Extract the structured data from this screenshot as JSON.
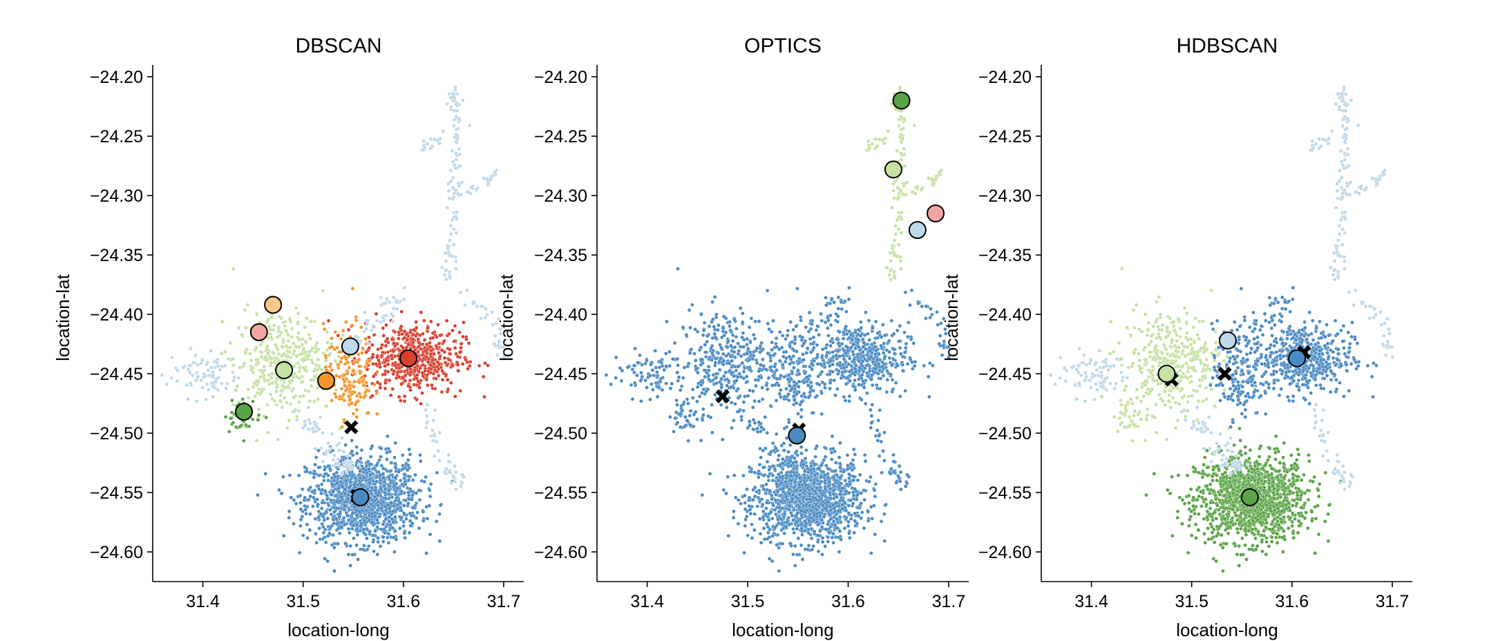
{
  "figure": {
    "panels": [
      {
        "title": "DBSCAN"
      },
      {
        "title": "OPTICS"
      },
      {
        "title": "HDBSCAN"
      }
    ],
    "xlabel": "location-long",
    "ylabel": "location-lat"
  },
  "chart_data": [
    {
      "type": "scatter",
      "title": "DBSCAN",
      "xlabel": "location-long",
      "ylabel": "location-lat",
      "xlim": [
        31.35,
        31.72
      ],
      "ylim": [
        -24.625,
        -24.19
      ],
      "xticks": [
        "31.4",
        "31.5",
        "31.6",
        "31.7"
      ],
      "yticks": [
        "−24.20",
        "−24.25",
        "−24.30",
        "−24.35",
        "−24.40",
        "−24.45",
        "−24.50",
        "−24.55",
        "−24.60"
      ],
      "grid": false,
      "centers": [
        {
          "x": 31.557,
          "y": -24.554,
          "color": "#4a8ac2"
        },
        {
          "x": 31.605,
          "y": -24.437,
          "color": "#d9402f"
        },
        {
          "x": 31.547,
          "y": -24.427,
          "color": "#bfd8ea"
        },
        {
          "x": 31.523,
          "y": -24.456,
          "color": "#f5952c"
        },
        {
          "x": 31.47,
          "y": -24.392,
          "color": "#f8c98a"
        },
        {
          "x": 31.456,
          "y": -24.415,
          "color": "#f1a6a2"
        },
        {
          "x": 31.481,
          "y": -24.447,
          "color": "#c5e2a4"
        },
        {
          "x": 31.441,
          "y": -24.482,
          "color": "#5aa346"
        }
      ],
      "noise_markers": [
        {
          "x": 31.554,
          "y": -24.553
        },
        {
          "x": 31.548,
          "y": -24.495
        }
      ]
    },
    {
      "type": "scatter",
      "title": "OPTICS",
      "xlabel": "location-long",
      "ylabel": "location-lat",
      "xlim": [
        31.35,
        31.72
      ],
      "ylim": [
        -24.625,
        -24.19
      ],
      "xticks": [
        "31.4",
        "31.5",
        "31.6",
        "31.7"
      ],
      "yticks": [
        "−24.20",
        "−24.25",
        "−24.30",
        "−24.35",
        "−24.40",
        "−24.45",
        "−24.50",
        "−24.55",
        "−24.60"
      ],
      "grid": false,
      "centers": [
        {
          "x": 31.549,
          "y": -24.502,
          "color": "#4a8ac2"
        },
        {
          "x": 31.653,
          "y": -24.22,
          "color": "#5aa346"
        },
        {
          "x": 31.645,
          "y": -24.278,
          "color": "#c5e2a4"
        },
        {
          "x": 31.687,
          "y": -24.315,
          "color": "#f1a6a2"
        },
        {
          "x": 31.669,
          "y": -24.329,
          "color": "#bfd8ea"
        }
      ],
      "noise_markers": [
        {
          "x": 31.475,
          "y": -24.469
        },
        {
          "x": 31.551,
          "y": -24.497
        }
      ]
    },
    {
      "type": "scatter",
      "title": "HDBSCAN",
      "xlabel": "location-long",
      "ylabel": "location-lat",
      "xlim": [
        31.35,
        31.72
      ],
      "ylim": [
        -24.625,
        -24.19
      ],
      "xticks": [
        "31.4",
        "31.5",
        "31.6",
        "31.7"
      ],
      "yticks": [
        "−24.20",
        "−24.25",
        "−24.30",
        "−24.35",
        "−24.40",
        "−24.45",
        "−24.50",
        "−24.55",
        "−24.60"
      ],
      "grid": false,
      "centers": [
        {
          "x": 31.558,
          "y": -24.554,
          "color": "#5aa346"
        },
        {
          "x": 31.605,
          "y": -24.437,
          "color": "#4a8ac2"
        },
        {
          "x": 31.536,
          "y": -24.422,
          "color": "#bfd8ea"
        },
        {
          "x": 31.475,
          "y": -24.45,
          "color": "#c5e2a4"
        }
      ],
      "noise_markers": [
        {
          "x": 31.612,
          "y": -24.432
        },
        {
          "x": 31.48,
          "y": -24.455
        },
        {
          "x": 31.533,
          "y": -24.45
        }
      ]
    }
  ]
}
